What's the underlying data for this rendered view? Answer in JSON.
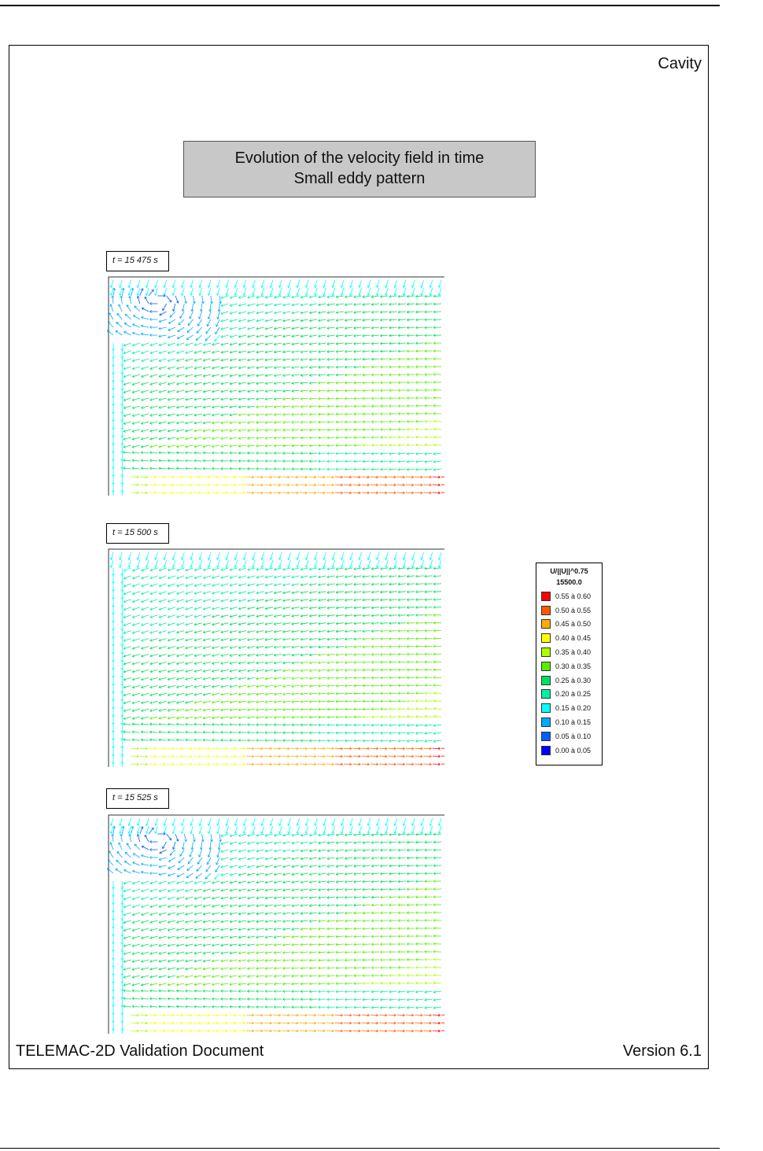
{
  "page": {
    "title": "Cavity",
    "caption_line1": "Evolution of the velocity field in time",
    "caption_line2": "Small eddy pattern",
    "footer_left": "TELEMAC-2D Validation Document",
    "footer_right": "Version 6.1"
  },
  "panels": [
    {
      "time_label": "t = 15 475 s",
      "pattern": "eddy-top-left"
    },
    {
      "time_label": "t = 15 500 s",
      "pattern": "no-eddy"
    },
    {
      "time_label": "t = 15 525 s",
      "pattern": "eddy-top-left"
    }
  ],
  "legend": {
    "title": "U/||U||^0.75",
    "time": "15500.0",
    "rows": [
      {
        "label": "0.55 à  0.60",
        "color": "#ff0000"
      },
      {
        "label": "0.50 à  0.55",
        "color": "#ff5a00"
      },
      {
        "label": "0.45 à  0.50",
        "color": "#ffaa00"
      },
      {
        "label": "0.40 à  0.45",
        "color": "#ffff00"
      },
      {
        "label": "0.35 à  0.40",
        "color": "#aaff00"
      },
      {
        "label": "0.30 à  0.35",
        "color": "#55ee00"
      },
      {
        "label": "0.25 à  0.30",
        "color": "#00e060"
      },
      {
        "label": "0.20 à  0.25",
        "color": "#00f0a0"
      },
      {
        "label": "0.15 à  0.20",
        "color": "#00ffff"
      },
      {
        "label": "0.10 à  0.15",
        "color": "#00aaff"
      },
      {
        "label": "0.05 à  0.10",
        "color": "#0060ff"
      },
      {
        "label": "0.00 à  0.05",
        "color": "#0000ff"
      }
    ]
  }
}
